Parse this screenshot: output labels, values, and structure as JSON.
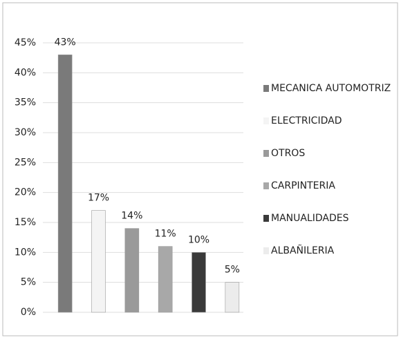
{
  "chart_data": {
    "type": "bar",
    "categories": [
      "MECANICA AUTOMOTRIZ",
      "ELECTRICIDAD",
      "OTROS",
      "CARPINTERIA",
      "MANUALIDADES",
      "ALBAÑILERIA"
    ],
    "values": [
      43,
      17,
      14,
      11,
      10,
      5
    ],
    "value_labels": [
      "43%",
      "17%",
      "14%",
      "11%",
      "10%",
      "5%"
    ],
    "colors": [
      "#7a7a7a",
      "#f4f4f4",
      "#9a9a9a",
      "#a8a8a8",
      "#3a3a3a",
      "#ececec"
    ],
    "ylim": [
      0,
      45
    ],
    "yticks": [
      {
        "value": 0,
        "label": "0%"
      },
      {
        "value": 5,
        "label": "5%"
      },
      {
        "value": 10,
        "label": "10%"
      },
      {
        "value": 15,
        "label": "15%"
      },
      {
        "value": 20,
        "label": "20%"
      },
      {
        "value": 25,
        "label": "25%"
      },
      {
        "value": 30,
        "label": "30%"
      },
      {
        "value": 35,
        "label": "35%"
      },
      {
        "value": 40,
        "label": "40%"
      },
      {
        "value": 45,
        "label": "45%"
      }
    ],
    "grid": true,
    "legend": "right"
  }
}
